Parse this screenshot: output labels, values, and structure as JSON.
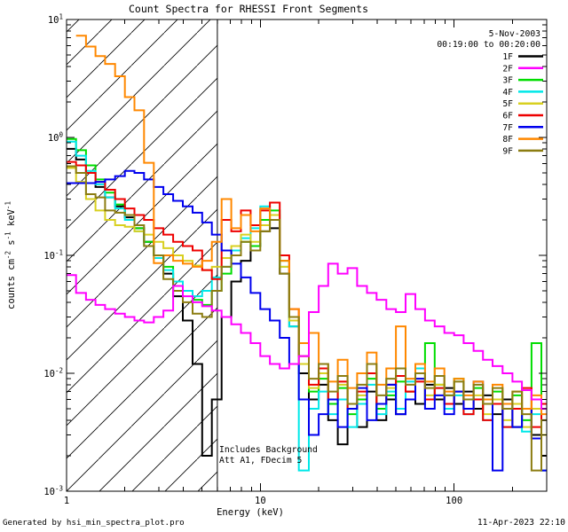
{
  "title": "Count Spectra for RHESSI Front Segments",
  "header": {
    "date": "5-Nov-2003",
    "time_range": "00:19:00 to 00:20:00"
  },
  "legend": {
    "position": "top-right",
    "entries": [
      {
        "label": "1F",
        "color": "#000000"
      },
      {
        "label": "2F",
        "color": "#ff00ff"
      },
      {
        "label": "3F",
        "color": "#00dd00"
      },
      {
        "label": "4F",
        "color": "#00e8e8"
      },
      {
        "label": "5F",
        "color": "#d8d020"
      },
      {
        "label": "6F",
        "color": "#ee0000"
      },
      {
        "label": "7F",
        "color": "#0000ee"
      },
      {
        "label": "8F",
        "color": "#ff8800"
      },
      {
        "label": "9F",
        "color": "#8c7d12"
      }
    ]
  },
  "annotations": {
    "line1": "Includes Background",
    "line2": "Att A1, FDecim 5"
  },
  "footer": {
    "left": "Generated by hsi_min_spectra_plot.pro",
    "right": "11-Apr-2023 22:10"
  },
  "axes": {
    "x_ticks": [
      {
        "value": 1,
        "label": "1"
      },
      {
        "value": 10,
        "label": "10"
      },
      {
        "value": 100,
        "label": "100"
      }
    ],
    "x_minor": [
      2,
      3,
      4,
      5,
      6,
      7,
      8,
      9,
      20,
      30,
      40,
      50,
      60,
      70,
      80,
      90,
      200,
      300
    ],
    "y_ticks": [
      {
        "value": 10,
        "label": "10^{1}"
      },
      {
        "value": 1,
        "label": "10^{0}"
      },
      {
        "value": 0.1,
        "label": "10^{-1}"
      },
      {
        "value": 0.01,
        "label": "10^{-2}"
      },
      {
        "value": 0.001,
        "label": "10^{-3}"
      }
    ],
    "y_minor_mantissas": [
      2,
      3,
      4,
      5,
      6,
      7,
      8,
      9
    ],
    "y_minor_decades": [
      0,
      -1,
      -2,
      -3
    ]
  },
  "chart_data": {
    "type": "line",
    "title": "Count Spectra for RHESSI Front Segments",
    "xlabel": "Energy (keV)",
    "ylabel": "counts cm^{-2} s^{-1} keV^{-1}",
    "x_scale": "log",
    "y_scale": "log",
    "xlim": [
      1,
      300
    ],
    "ylim": [
      0.001,
      10
    ],
    "grid": false,
    "hatched_region_keV": [
      1,
      6
    ],
    "vertical_line_keV": 6,
    "energies_keV": [
      1.0,
      1.12,
      1.26,
      1.41,
      1.58,
      1.78,
      2.0,
      2.24,
      2.51,
      2.82,
      3.16,
      3.55,
      3.98,
      4.47,
      5.01,
      5.62,
      6.31,
      7.08,
      7.94,
      8.91,
      10.0,
      11.2,
      12.6,
      14.1,
      15.8,
      17.8,
      20.0,
      22.4,
      25.1,
      28.2,
      31.6,
      35.5,
      39.8,
      44.7,
      50.1,
      56.2,
      63.1,
      70.8,
      79.4,
      89.1,
      100,
      112,
      126,
      141,
      158,
      178,
      200,
      224,
      251,
      282
    ],
    "series": [
      {
        "name": "1F",
        "color": "#000000",
        "values": [
          0.8,
          0.65,
          0.5,
          0.38,
          0.31,
          0.26,
          0.21,
          0.17,
          0.13,
          0.1,
          0.07,
          0.045,
          0.028,
          0.012,
          0.002,
          0.006,
          0.03,
          0.06,
          0.09,
          0.12,
          0.16,
          0.17,
          0.07,
          0.025,
          0.01,
          0.006,
          0.008,
          0.004,
          0.0025,
          0.005,
          0.0035,
          0.007,
          0.004,
          0.006,
          0.0045,
          0.007,
          0.0055,
          0.008,
          0.006,
          0.0075,
          0.0055,
          0.007,
          0.005,
          0.0065,
          0.0045,
          0.006,
          0.0035,
          0.005,
          0.003,
          0.002
        ]
      },
      {
        "name": "3F",
        "color": "#00dd00",
        "values": [
          0.97,
          0.78,
          0.58,
          0.44,
          0.34,
          0.27,
          0.22,
          0.17,
          0.13,
          0.1,
          0.08,
          0.06,
          0.05,
          0.042,
          0.038,
          0.05,
          0.07,
          0.1,
          0.13,
          0.12,
          0.2,
          0.24,
          0.09,
          0.03,
          0.012,
          0.007,
          0.009,
          0.0055,
          0.0075,
          0.0045,
          0.006,
          0.009,
          0.005,
          0.0065,
          0.0085,
          0.006,
          0.012,
          0.018,
          0.008,
          0.0065,
          0.009,
          0.006,
          0.0075,
          0.0055,
          0.007,
          0.005,
          0.0065,
          0.004,
          0.018,
          0.0055
        ]
      },
      {
        "name": "4F",
        "color": "#00e8e8",
        "values": [
          0.92,
          0.7,
          0.52,
          0.4,
          0.31,
          0.25,
          0.2,
          0.16,
          0.12,
          0.095,
          0.075,
          0.06,
          0.05,
          0.045,
          0.05,
          0.065,
          0.08,
          0.11,
          0.14,
          0.17,
          0.26,
          0.22,
          0.08,
          0.025,
          0.0015,
          0.005,
          0.007,
          0.0045,
          0.006,
          0.0035,
          0.0055,
          0.008,
          0.0045,
          0.007,
          0.005,
          0.0085,
          0.011,
          0.006,
          0.0075,
          0.005,
          0.0065,
          0.0045,
          0.006,
          0.004,
          0.0055,
          0.0035,
          0.005,
          0.0032,
          0.0045,
          0.0015
        ]
      },
      {
        "name": "5F",
        "color": "#d8d020",
        "values": [
          0.55,
          0.42,
          0.3,
          0.24,
          0.2,
          0.18,
          0.175,
          0.16,
          0.15,
          0.13,
          0.115,
          0.1,
          0.09,
          0.082,
          0.075,
          0.08,
          0.095,
          0.12,
          0.15,
          0.13,
          0.18,
          0.22,
          0.08,
          0.028,
          0.012,
          0.0075,
          0.01,
          0.006,
          0.008,
          0.005,
          0.0065,
          0.01,
          0.0055,
          0.0075,
          0.0095,
          0.007,
          0.009,
          0.0065,
          0.008,
          0.0055,
          0.007,
          0.005,
          0.0065,
          0.0045,
          0.006,
          0.004,
          0.0055,
          0.0035,
          0.005,
          0.003
        ]
      },
      {
        "name": "6F",
        "color": "#ee0000",
        "values": [
          0.62,
          0.58,
          0.5,
          0.42,
          0.36,
          0.3,
          0.25,
          0.22,
          0.2,
          0.17,
          0.15,
          0.13,
          0.12,
          0.11,
          0.075,
          0.063,
          0.2,
          0.16,
          0.24,
          0.18,
          0.24,
          0.28,
          0.1,
          0.035,
          0.014,
          0.008,
          0.011,
          0.006,
          0.0085,
          0.005,
          0.007,
          0.01,
          0.0055,
          0.008,
          0.0095,
          0.007,
          0.0085,
          0.006,
          0.0075,
          0.0055,
          0.007,
          0.0045,
          0.006,
          0.004,
          0.0055,
          0.0035,
          0.005,
          0.0075,
          0.0035,
          0.0055
        ]
      },
      {
        "name": "7F",
        "color": "#0000ee",
        "values": [
          0.41,
          0.41,
          0.41,
          0.42,
          0.44,
          0.47,
          0.52,
          0.5,
          0.44,
          0.38,
          0.33,
          0.29,
          0.26,
          0.23,
          0.19,
          0.15,
          0.11,
          0.085,
          0.065,
          0.048,
          0.035,
          0.028,
          0.02,
          0.012,
          0.006,
          0.003,
          0.0045,
          0.006,
          0.0035,
          0.005,
          0.0075,
          0.004,
          0.0055,
          0.008,
          0.0045,
          0.006,
          0.009,
          0.005,
          0.0065,
          0.0045,
          0.007,
          0.005,
          0.0085,
          0.006,
          0.0015,
          0.0055,
          0.0035,
          0.005,
          0.0028,
          0.0015
        ]
      },
      {
        "name": "8F",
        "color": "#ff8800",
        "values": [
          null,
          7.3,
          5.9,
          4.9,
          4.2,
          3.3,
          2.2,
          1.7,
          0.61,
          0.086,
          0.1,
          0.09,
          0.085,
          0.08,
          0.09,
          0.13,
          0.3,
          0.17,
          0.22,
          0.16,
          0.25,
          0.2,
          0.09,
          0.035,
          0.018,
          0.022,
          0.012,
          0.0085,
          0.013,
          0.0075,
          0.01,
          0.015,
          0.008,
          0.011,
          0.025,
          0.009,
          0.012,
          0.0085,
          0.011,
          0.007,
          0.009,
          0.0065,
          0.0085,
          0.006,
          0.008,
          0.0055,
          0.007,
          0.005,
          0.0065,
          0.0045
        ]
      },
      {
        "name": "9F",
        "color": "#8c7d12",
        "values": [
          0.57,
          0.5,
          0.33,
          0.31,
          0.24,
          0.23,
          0.22,
          0.18,
          0.12,
          0.1,
          0.063,
          0.05,
          0.04,
          0.032,
          0.03,
          0.05,
          0.08,
          0.1,
          0.13,
          0.11,
          0.16,
          0.2,
          0.07,
          0.03,
          0.014,
          0.009,
          0.012,
          0.007,
          0.0095,
          0.0055,
          0.008,
          0.012,
          0.0065,
          0.009,
          0.011,
          0.008,
          0.01,
          0.0075,
          0.0095,
          0.0065,
          0.0085,
          0.006,
          0.008,
          0.0055,
          0.0075,
          0.005,
          0.007,
          0.0045,
          0.0015,
          0.004
        ]
      },
      {
        "name": "2F",
        "color": "#ff00ff",
        "values": [
          0.068,
          0.048,
          0.042,
          0.038,
          0.035,
          0.032,
          0.03,
          0.028,
          0.027,
          0.03,
          0.034,
          0.055,
          0.045,
          0.04,
          0.037,
          0.034,
          0.03,
          0.026,
          0.022,
          0.018,
          0.014,
          0.012,
          0.011,
          0.012,
          0.014,
          0.033,
          0.055,
          0.085,
          0.07,
          0.078,
          0.055,
          0.048,
          0.042,
          0.035,
          0.033,
          0.047,
          0.035,
          0.028,
          0.025,
          0.022,
          0.021,
          0.018,
          0.0155,
          0.013,
          0.0115,
          0.01,
          0.0085,
          0.0072,
          0.006,
          0.005
        ]
      }
    ]
  }
}
